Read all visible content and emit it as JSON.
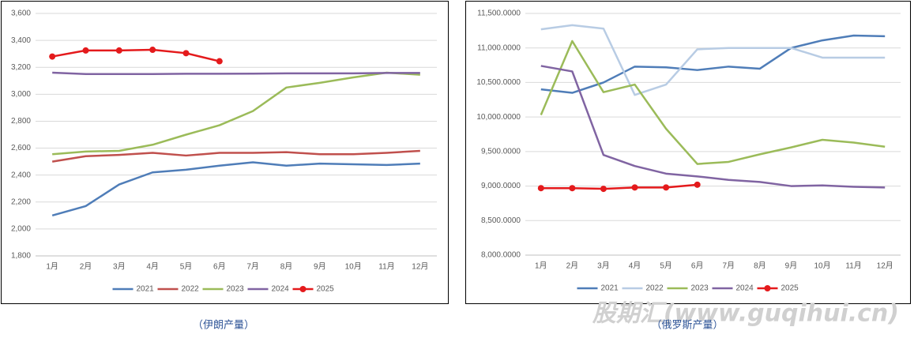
{
  "chart_data": [
    {
      "type": "line",
      "caption": "（伊朗产量）",
      "categories": [
        "1月",
        "2月",
        "3月",
        "4月",
        "5月",
        "6月",
        "7月",
        "8月",
        "9月",
        "10月",
        "11月",
        "12月"
      ],
      "ylim": [
        1800,
        3600
      ],
      "yticks": [
        {
          "value": 1800,
          "label": "1,800"
        },
        {
          "value": 2000,
          "label": "2,000"
        },
        {
          "value": 2200,
          "label": "2,200"
        },
        {
          "value": 2400,
          "label": "2,400"
        },
        {
          "value": 2600,
          "label": "2,600"
        },
        {
          "value": 2800,
          "label": "2,800"
        },
        {
          "value": 3000,
          "label": "3,000"
        },
        {
          "value": 3200,
          "label": "3,200"
        },
        {
          "value": 3400,
          "label": "3,400"
        },
        {
          "value": 3600,
          "label": "3,600"
        }
      ],
      "grid": true,
      "series": [
        {
          "name": "2021",
          "color": "#4f7db8",
          "values": [
            2100,
            2170,
            2330,
            2420,
            2440,
            2470,
            2495,
            2470,
            2485,
            2480,
            2475,
            2485
          ]
        },
        {
          "name": "2022",
          "color": "#c0504d",
          "values": [
            2500,
            2540,
            2550,
            2565,
            2545,
            2565,
            2565,
            2570,
            2555,
            2555,
            2565,
            2580
          ]
        },
        {
          "name": "2023",
          "color": "#9bbb59",
          "values": [
            2555,
            2575,
            2580,
            2625,
            2700,
            2770,
            2875,
            3050,
            3085,
            3125,
            3160,
            3145
          ]
        },
        {
          "name": "2024",
          "color": "#8064a2",
          "values": [
            3160,
            3150,
            3150,
            3150,
            3152,
            3152,
            3153,
            3155,
            3155,
            3155,
            3158,
            3158
          ]
        },
        {
          "name": "2025",
          "color": "#e41a1c",
          "marker": true,
          "values": [
            3280,
            3325,
            3325,
            3330,
            3305,
            3245,
            null,
            null,
            null,
            null,
            null,
            null
          ]
        }
      ]
    },
    {
      "type": "line",
      "caption": "（俄罗斯产量）",
      "categories": [
        "1月",
        "2月",
        "3月",
        "4月",
        "5月",
        "6月",
        "7月",
        "8月",
        "9月",
        "10月",
        "11月",
        "12月"
      ],
      "ylim": [
        8000,
        11500
      ],
      "yticks": [
        {
          "value": 8000,
          "label": "8,000.0000"
        },
        {
          "value": 8500,
          "label": "8,500.0000"
        },
        {
          "value": 9000,
          "label": "9,000.0000"
        },
        {
          "value": 9500,
          "label": "9,500.0000"
        },
        {
          "value": 10000,
          "label": "10,000.0000"
        },
        {
          "value": 10500,
          "label": "10,500.0000"
        },
        {
          "value": 11000,
          "label": "11,000.0000"
        },
        {
          "value": 11500,
          "label": "11,500.0000"
        }
      ],
      "grid": true,
      "series": [
        {
          "name": "2021",
          "color": "#4f7db8",
          "values": [
            10400,
            10350,
            10500,
            10730,
            10720,
            10680,
            10730,
            10700,
            11000,
            11110,
            11180,
            11170
          ]
        },
        {
          "name": "2022",
          "color": "#b8cce4",
          "values": [
            11270,
            11330,
            11280,
            10320,
            10470,
            10980,
            11000,
            11000,
            11000,
            10860,
            10860,
            10860
          ]
        },
        {
          "name": "2023",
          "color": "#9bbb59",
          "values": [
            10030,
            11100,
            10360,
            10470,
            9830,
            9320,
            9350,
            9460,
            9560,
            9670,
            9630,
            9570
          ]
        },
        {
          "name": "2024",
          "color": "#8064a2",
          "values": [
            10740,
            10660,
            9450,
            9290,
            9180,
            9140,
            9090,
            9060,
            9000,
            9010,
            8990,
            8980
          ]
        },
        {
          "name": "2025",
          "color": "#e41a1c",
          "marker": true,
          "values": [
            8970,
            8970,
            8960,
            8980,
            8980,
            9020,
            null,
            null,
            null,
            null,
            null,
            null
          ]
        }
      ]
    }
  ],
  "watermark": "股期汇(www.guqihui.cn)"
}
